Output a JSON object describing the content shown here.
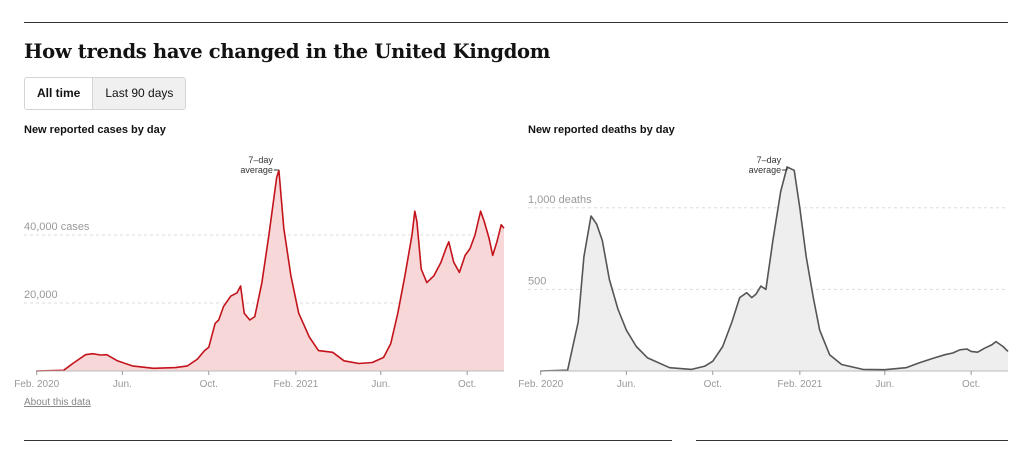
{
  "heading": "How trends have changed in the United Kingdom",
  "toggle": {
    "all_time": "All time",
    "last_90": "Last 90 days"
  },
  "about_link": "About this data",
  "annotation": {
    "line1": "7–day",
    "line2": "average"
  },
  "colors": {
    "cases_line": "#c3141b",
    "cases_fill": "#f8d7d8",
    "deaths_line": "#555555",
    "deaths_fill": "#eeeeee",
    "grid": "#dddddd"
  },
  "chart_data": [
    {
      "type": "area",
      "title": "New reported cases by day",
      "xlabel": "",
      "ylabel": "",
      "ylim": [
        0,
        60000
      ],
      "y_gridlines": [
        20000,
        40000
      ],
      "y_tick_labels": [
        "20,000",
        "40,000 cases"
      ],
      "x_tick_labels": [
        "Feb. 2020",
        "Jun.",
        "Oct.",
        "Feb. 2021",
        "Jun.",
        "Oct."
      ],
      "x_tick_dates": [
        "2020-02-01",
        "2020-06-01",
        "2020-10-01",
        "2021-02-01",
        "2021-06-01",
        "2021-10-01"
      ],
      "x_range": [
        "2020-01-31",
        "2021-11-22"
      ],
      "series": [
        {
          "values": [
            [
              "2020-01-31",
              0
            ],
            [
              "2020-03-10",
              200
            ],
            [
              "2020-03-25",
              2500
            ],
            [
              "2020-04-10",
              4800
            ],
            [
              "2020-04-20",
              5100
            ],
            [
              "2020-05-01",
              4700
            ],
            [
              "2020-05-10",
              4800
            ],
            [
              "2020-05-25",
              3000
            ],
            [
              "2020-06-15",
              1500
            ],
            [
              "2020-07-15",
              800
            ],
            [
              "2020-08-15",
              1000
            ],
            [
              "2020-09-01",
              1500
            ],
            [
              "2020-09-15",
              3500
            ],
            [
              "2020-09-25",
              6000
            ],
            [
              "2020-10-01",
              7000
            ],
            [
              "2020-10-10",
              14000
            ],
            [
              "2020-10-15",
              15000
            ],
            [
              "2020-10-22",
              19000
            ],
            [
              "2020-11-01",
              22000
            ],
            [
              "2020-11-10",
              23000
            ],
            [
              "2020-11-15",
              25000
            ],
            [
              "2020-11-20",
              17000
            ],
            [
              "2020-11-28",
              15000
            ],
            [
              "2020-12-05",
              16000
            ],
            [
              "2020-12-15",
              26000
            ],
            [
              "2020-12-25",
              40000
            ],
            [
              "2021-01-05",
              57000
            ],
            [
              "2021-01-08",
              59000
            ],
            [
              "2021-01-15",
              42000
            ],
            [
              "2021-01-25",
              28000
            ],
            [
              "2021-02-05",
              17000
            ],
            [
              "2021-02-20",
              10000
            ],
            [
              "2021-03-05",
              6000
            ],
            [
              "2021-03-25",
              5500
            ],
            [
              "2021-04-10",
              3000
            ],
            [
              "2021-05-01",
              2200
            ],
            [
              "2021-05-20",
              2500
            ],
            [
              "2021-06-05",
              4000
            ],
            [
              "2021-06-15",
              8000
            ],
            [
              "2021-06-25",
              17000
            ],
            [
              "2021-07-05",
              28000
            ],
            [
              "2021-07-15",
              40000
            ],
            [
              "2021-07-19",
              47000
            ],
            [
              "2021-07-22",
              44000
            ],
            [
              "2021-07-28",
              30000
            ],
            [
              "2021-08-05",
              26000
            ],
            [
              "2021-08-15",
              28000
            ],
            [
              "2021-08-25",
              32000
            ],
            [
              "2021-09-01",
              36000
            ],
            [
              "2021-09-05",
              38000
            ],
            [
              "2021-09-12",
              32000
            ],
            [
              "2021-09-20",
              29000
            ],
            [
              "2021-09-28",
              34000
            ],
            [
              "2021-10-05",
              36000
            ],
            [
              "2021-10-12",
              40000
            ],
            [
              "2021-10-20",
              47000
            ],
            [
              "2021-10-25",
              44000
            ],
            [
              "2021-11-01",
              39000
            ],
            [
              "2021-11-06",
              34000
            ],
            [
              "2021-11-12",
              38000
            ],
            [
              "2021-11-18",
              43000
            ],
            [
              "2021-11-22",
              42000
            ]
          ]
        }
      ],
      "annotation_date": "2021-01-08"
    },
    {
      "type": "area",
      "title": "New reported deaths by day",
      "xlabel": "",
      "ylabel": "",
      "ylim": [
        0,
        1250
      ],
      "y_gridlines": [
        500,
        1000
      ],
      "y_tick_labels": [
        "500",
        "1,000 deaths"
      ],
      "x_tick_labels": [
        "Feb. 2020",
        "Jun.",
        "Oct.",
        "Feb. 2021",
        "Jun.",
        "Oct."
      ],
      "x_tick_dates": [
        "2020-02-01",
        "2020-06-01",
        "2020-10-01",
        "2021-02-01",
        "2021-06-01",
        "2021-10-01"
      ],
      "x_range": [
        "2020-01-31",
        "2021-11-22"
      ],
      "series": [
        {
          "values": [
            [
              "2020-01-31",
              0
            ],
            [
              "2020-03-10",
              5
            ],
            [
              "2020-03-25",
              300
            ],
            [
              "2020-04-02",
              700
            ],
            [
              "2020-04-12",
              950
            ],
            [
              "2020-04-20",
              900
            ],
            [
              "2020-04-28",
              800
            ],
            [
              "2020-05-08",
              560
            ],
            [
              "2020-05-20",
              380
            ],
            [
              "2020-06-01",
              250
            ],
            [
              "2020-06-15",
              150
            ],
            [
              "2020-07-01",
              80
            ],
            [
              "2020-08-01",
              20
            ],
            [
              "2020-09-01",
              10
            ],
            [
              "2020-09-20",
              30
            ],
            [
              "2020-10-01",
              60
            ],
            [
              "2020-10-15",
              150
            ],
            [
              "2020-10-28",
              300
            ],
            [
              "2020-11-08",
              450
            ],
            [
              "2020-11-18",
              480
            ],
            [
              "2020-11-25",
              450
            ],
            [
              "2020-12-01",
              470
            ],
            [
              "2020-12-08",
              520
            ],
            [
              "2020-12-15",
              500
            ],
            [
              "2020-12-25",
              800
            ],
            [
              "2021-01-05",
              1100
            ],
            [
              "2021-01-14",
              1250
            ],
            [
              "2021-01-24",
              1230
            ],
            [
              "2021-02-01",
              1000
            ],
            [
              "2021-02-10",
              700
            ],
            [
              "2021-02-20",
              450
            ],
            [
              "2021-03-01",
              250
            ],
            [
              "2021-03-15",
              100
            ],
            [
              "2021-04-01",
              40
            ],
            [
              "2021-05-01",
              10
            ],
            [
              "2021-06-01",
              8
            ],
            [
              "2021-07-01",
              20
            ],
            [
              "2021-07-20",
              50
            ],
            [
              "2021-08-10",
              80
            ],
            [
              "2021-08-25",
              100
            ],
            [
              "2021-09-05",
              110
            ],
            [
              "2021-09-15",
              130
            ],
            [
              "2021-09-25",
              135
            ],
            [
              "2021-10-01",
              120
            ],
            [
              "2021-10-10",
              115
            ],
            [
              "2021-10-20",
              140
            ],
            [
              "2021-10-30",
              160
            ],
            [
              "2021-11-05",
              180
            ],
            [
              "2021-11-15",
              150
            ],
            [
              "2021-11-22",
              120
            ]
          ]
        }
      ],
      "annotation_date": "2021-01-14"
    }
  ]
}
